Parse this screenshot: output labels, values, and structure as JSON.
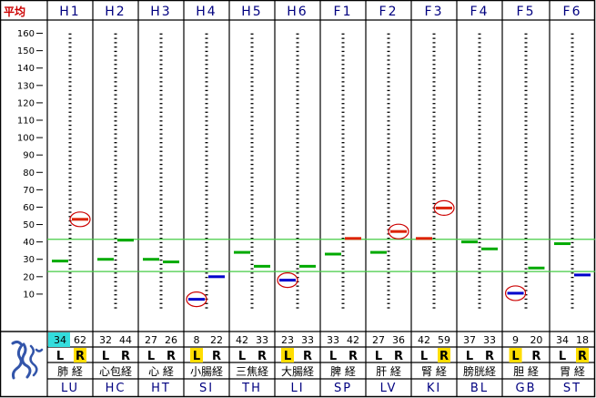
{
  "average_label": "平均",
  "scale_ticks": [
    160,
    150,
    140,
    130,
    120,
    110,
    100,
    90,
    80,
    70,
    60,
    50,
    40,
    30,
    20,
    10
  ],
  "scale_min": 0,
  "scale_max": 165,
  "reference_lines": [
    41.5,
    23
  ],
  "colors": {
    "normal": "#00aa00",
    "high": "#dd2200",
    "low": "#0000cc",
    "circle": "#cc0000",
    "highlight_yellow": "#ffdd00",
    "highlight_cyan": "#33dddd",
    "refline": "#44cc44"
  },
  "logo_icon": "meridian-figure-icon",
  "channels": [
    {
      "code": "H1",
      "name": "肺 経",
      "abbr": "LU",
      "left": {
        "value": 34,
        "marker": 29,
        "status": "normal"
      },
      "right": {
        "value": 62,
        "marker": 53,
        "status": "high",
        "circled": true
      },
      "left_label": "L",
      "right_label": "R",
      "left_value_text": "34",
      "right_value_text": "62",
      "highlight": "R",
      "value_highlight": "left"
    },
    {
      "code": "H2",
      "name": "心包経",
      "abbr": "HC",
      "left": {
        "value": 32,
        "marker": 30,
        "status": "normal"
      },
      "right": {
        "value": 44,
        "marker": 41,
        "status": "normal"
      },
      "left_label": "L",
      "right_label": "R",
      "left_value_text": "32",
      "right_value_text": "44"
    },
    {
      "code": "H3",
      "name": "心 経",
      "abbr": "HT",
      "left": {
        "value": 27,
        "marker": 30,
        "status": "normal"
      },
      "right": {
        "value": 26,
        "marker": 28.5,
        "status": "normal"
      },
      "left_label": "L",
      "right_label": "R",
      "left_value_text": "27",
      "right_value_text": "26"
    },
    {
      "code": "H4",
      "name": "小腸経",
      "abbr": "SI",
      "left": {
        "value": 8,
        "marker": 7,
        "status": "low",
        "circled": true
      },
      "right": {
        "value": 22,
        "marker": 20,
        "status": "low"
      },
      "left_label": "L",
      "right_label": "R",
      "left_value_text": "8",
      "right_value_text": "22",
      "highlight": "L"
    },
    {
      "code": "H5",
      "name": "三焦経",
      "abbr": "TH",
      "left": {
        "value": 42,
        "marker": 34,
        "status": "normal"
      },
      "right": {
        "value": 33,
        "marker": 26,
        "status": "normal"
      },
      "left_label": "L",
      "right_label": "R",
      "left_value_text": "42",
      "right_value_text": "33"
    },
    {
      "code": "H6",
      "name": "大腸経",
      "abbr": "LI",
      "left": {
        "value": 23,
        "marker": 18,
        "status": "low",
        "circled": true
      },
      "right": {
        "value": 33,
        "marker": 26,
        "status": "normal"
      },
      "left_label": "L",
      "right_label": "R",
      "left_value_text": "23",
      "right_value_text": "33",
      "highlight": "L"
    },
    {
      "code": "F1",
      "name": "脾 経",
      "abbr": "SP",
      "left": {
        "value": 33,
        "marker": 33,
        "status": "normal"
      },
      "right": {
        "value": 42,
        "marker": 42,
        "status": "high"
      },
      "left_label": "L",
      "right_label": "R",
      "left_value_text": "33",
      "right_value_text": "42"
    },
    {
      "code": "F2",
      "name": "肝 経",
      "abbr": "LV",
      "left": {
        "value": 27,
        "marker": 34,
        "status": "normal"
      },
      "right": {
        "value": 36,
        "marker": 46,
        "status": "high",
        "circled": true
      },
      "left_label": "L",
      "right_label": "R",
      "left_value_text": "27",
      "right_value_text": "36"
    },
    {
      "code": "F3",
      "name": "腎 経",
      "abbr": "KI",
      "left": {
        "value": 42,
        "marker": 42,
        "status": "high"
      },
      "right": {
        "value": 59,
        "marker": 59.5,
        "status": "high",
        "circled": true
      },
      "left_label": "L",
      "right_label": "R",
      "left_value_text": "42",
      "right_value_text": "59",
      "highlight": "R"
    },
    {
      "code": "F4",
      "name": "膀胱経",
      "abbr": "BL",
      "left": {
        "value": 37,
        "marker": 40,
        "status": "normal"
      },
      "right": {
        "value": 33,
        "marker": 36,
        "status": "normal"
      },
      "left_label": "L",
      "right_label": "R",
      "left_value_text": "37",
      "right_value_text": "33"
    },
    {
      "code": "F5",
      "name": "胆 経",
      "abbr": "GB",
      "left": {
        "value": 9,
        "marker": 10.5,
        "status": "low",
        "circled": true
      },
      "right": {
        "value": 20,
        "marker": 25,
        "status": "normal"
      },
      "left_label": "L",
      "right_label": "R",
      "left_value_text": "9",
      "right_value_text": "20",
      "highlight": "L"
    },
    {
      "code": "F6",
      "name": "胃 経",
      "abbr": "ST",
      "left": {
        "value": 34,
        "marker": 39,
        "status": "normal"
      },
      "right": {
        "value": 18,
        "marker": 21,
        "status": "low"
      },
      "left_label": "L",
      "right_label": "R",
      "left_value_text": "34",
      "right_value_text": "18",
      "highlight": "R"
    }
  ]
}
